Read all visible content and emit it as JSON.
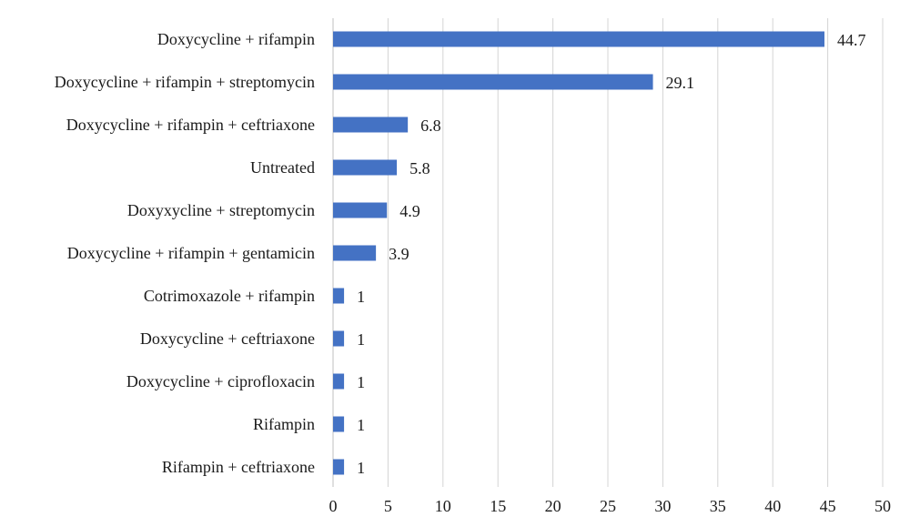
{
  "chart_data": {
    "type": "bar",
    "orientation": "horizontal",
    "categories": [
      "Doxycycline + rifampin",
      "Doxycycline + rifampin + streptomycin",
      "Doxycycline + rifampin + ceftriaxone",
      "Untreated",
      "Doxyxycline + streptomycin",
      "Doxycycline + rifampin + gentamicin",
      "Cotrimoxazole + rifampin",
      "Doxycycline + ceftriaxone",
      "Doxycycline + ciprofloxacin",
      "Rifampin",
      "Rifampin + ceftriaxone"
    ],
    "values": [
      44.7,
      29.1,
      6.8,
      5.8,
      4.9,
      3.9,
      1,
      1,
      1,
      1,
      1
    ],
    "value_labels": [
      "44.7",
      "29.1",
      "6.8",
      "5.8",
      "4.9",
      "3.9",
      "1",
      "1",
      "1",
      "1",
      "1"
    ],
    "xlim": [
      0,
      50
    ],
    "xticks": [
      0,
      5,
      10,
      15,
      20,
      25,
      30,
      35,
      40,
      45,
      50
    ],
    "title": "",
    "xlabel": "",
    "ylabel": "",
    "grid": "vertical",
    "legend": "none",
    "bar_color": "#4472C4"
  }
}
